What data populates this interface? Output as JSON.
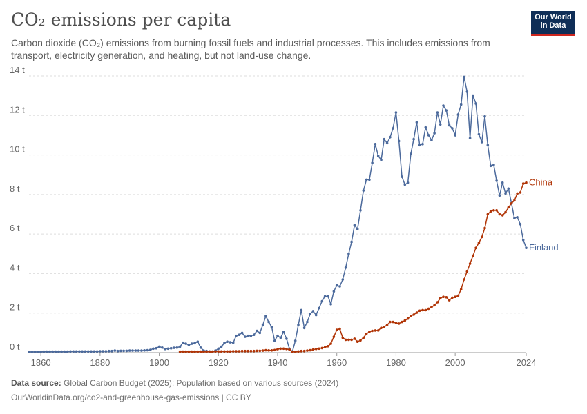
{
  "header": {
    "title": "CO₂ emissions per capita",
    "subtitle": "Carbon dioxide (CO₂) emissions from burning fossil fuels and industrial processes. This includes emissions from transport, electricity generation, and heating, but not land-use change.",
    "logo_line1": "Our World",
    "logo_line2": "in Data"
  },
  "footer": {
    "source_label": "Data source:",
    "source_text": "Global Carbon Budget (2025); Population based on various sources (2024)",
    "url_text": "OurWorldinData.org/co2-and-greenhouse-gas-emissions | CC BY"
  },
  "colors": {
    "finland": "#4c6a9c",
    "china": "#b13507",
    "grid": "#dddddd",
    "axis": "#999999"
  },
  "chart_data": {
    "type": "line",
    "title": "CO₂ emissions per capita",
    "xlim": [
      1856,
      2024
    ],
    "ylim": [
      0,
      14
    ],
    "x_ticks": [
      1860,
      1880,
      1900,
      1920,
      1940,
      1960,
      1980,
      2000,
      2024
    ],
    "y_ticks": [
      0,
      2,
      4,
      6,
      8,
      10,
      12,
      14
    ],
    "y_tick_labels": [
      "0 t",
      "2 t",
      "4 t",
      "6 t",
      "8 t",
      "10 t",
      "12 t",
      "14 t"
    ],
    "grid": "horizontal dashed",
    "legend": "inline labels at line ends",
    "series": [
      {
        "name": "Finland",
        "color": "#4c6a9c",
        "points": [
          [
            1856,
            0.04
          ],
          [
            1857,
            0.04
          ],
          [
            1858,
            0.04
          ],
          [
            1859,
            0.04
          ],
          [
            1860,
            0.04
          ],
          [
            1861,
            0.05
          ],
          [
            1862,
            0.05
          ],
          [
            1863,
            0.05
          ],
          [
            1864,
            0.05
          ],
          [
            1865,
            0.05
          ],
          [
            1866,
            0.05
          ],
          [
            1867,
            0.05
          ],
          [
            1868,
            0.05
          ],
          [
            1869,
            0.05
          ],
          [
            1870,
            0.06
          ],
          [
            1871,
            0.06
          ],
          [
            1872,
            0.06
          ],
          [
            1873,
            0.06
          ],
          [
            1874,
            0.06
          ],
          [
            1875,
            0.06
          ],
          [
            1876,
            0.06
          ],
          [
            1877,
            0.06
          ],
          [
            1878,
            0.06
          ],
          [
            1879,
            0.06
          ],
          [
            1880,
            0.07
          ],
          [
            1881,
            0.07
          ],
          [
            1882,
            0.07
          ],
          [
            1883,
            0.08
          ],
          [
            1884,
            0.08
          ],
          [
            1885,
            0.1
          ],
          [
            1886,
            0.08
          ],
          [
            1887,
            0.09
          ],
          [
            1888,
            0.09
          ],
          [
            1889,
            0.09
          ],
          [
            1890,
            0.1
          ],
          [
            1891,
            0.1
          ],
          [
            1892,
            0.1
          ],
          [
            1893,
            0.1
          ],
          [
            1894,
            0.1
          ],
          [
            1895,
            0.11
          ],
          [
            1896,
            0.12
          ],
          [
            1897,
            0.14
          ],
          [
            1898,
            0.2
          ],
          [
            1899,
            0.22
          ],
          [
            1900,
            0.3
          ],
          [
            1901,
            0.25
          ],
          [
            1902,
            0.18
          ],
          [
            1903,
            0.2
          ],
          [
            1904,
            0.22
          ],
          [
            1905,
            0.24
          ],
          [
            1906,
            0.25
          ],
          [
            1907,
            0.3
          ],
          [
            1908,
            0.5
          ],
          [
            1909,
            0.45
          ],
          [
            1910,
            0.38
          ],
          [
            1911,
            0.45
          ],
          [
            1912,
            0.48
          ],
          [
            1913,
            0.55
          ],
          [
            1914,
            0.25
          ],
          [
            1915,
            0.1
          ],
          [
            1916,
            0.08
          ],
          [
            1917,
            0.06
          ],
          [
            1918,
            0.05
          ],
          [
            1919,
            0.1
          ],
          [
            1920,
            0.2
          ],
          [
            1921,
            0.3
          ],
          [
            1922,
            0.48
          ],
          [
            1923,
            0.55
          ],
          [
            1924,
            0.52
          ],
          [
            1925,
            0.5
          ],
          [
            1926,
            0.85
          ],
          [
            1927,
            0.9
          ],
          [
            1928,
            1.0
          ],
          [
            1929,
            0.8
          ],
          [
            1930,
            0.85
          ],
          [
            1931,
            0.85
          ],
          [
            1932,
            0.9
          ],
          [
            1933,
            1.1
          ],
          [
            1934,
            1.0
          ],
          [
            1935,
            1.4
          ],
          [
            1936,
            1.85
          ],
          [
            1937,
            1.55
          ],
          [
            1938,
            1.3
          ],
          [
            1939,
            0.6
          ],
          [
            1940,
            0.85
          ],
          [
            1941,
            0.75
          ],
          [
            1942,
            1.05
          ],
          [
            1943,
            0.7
          ],
          [
            1944,
            0.2
          ],
          [
            1945,
            0.05
          ],
          [
            1946,
            0.6
          ],
          [
            1947,
            1.4
          ],
          [
            1948,
            2.15
          ],
          [
            1949,
            1.25
          ],
          [
            1950,
            1.55
          ],
          [
            1951,
            1.95
          ],
          [
            1952,
            2.1
          ],
          [
            1953,
            1.9
          ],
          [
            1954,
            2.25
          ],
          [
            1955,
            2.6
          ],
          [
            1956,
            2.85
          ],
          [
            1957,
            2.85
          ],
          [
            1958,
            2.45
          ],
          [
            1959,
            3.1
          ],
          [
            1960,
            3.4
          ],
          [
            1961,
            3.35
          ],
          [
            1962,
            3.7
          ],
          [
            1963,
            4.3
          ],
          [
            1964,
            5.0
          ],
          [
            1965,
            5.6
          ],
          [
            1966,
            6.45
          ],
          [
            1967,
            6.25
          ],
          [
            1968,
            7.2
          ],
          [
            1969,
            8.2
          ],
          [
            1970,
            8.75
          ],
          [
            1971,
            8.75
          ],
          [
            1972,
            9.6
          ],
          [
            1973,
            10.55
          ],
          [
            1974,
            9.95
          ],
          [
            1975,
            9.75
          ],
          [
            1976,
            10.8
          ],
          [
            1977,
            10.6
          ],
          [
            1978,
            10.9
          ],
          [
            1979,
            11.35
          ],
          [
            1980,
            12.15
          ],
          [
            1981,
            10.7
          ],
          [
            1982,
            8.9
          ],
          [
            1983,
            8.5
          ],
          [
            1984,
            8.6
          ],
          [
            1985,
            10.05
          ],
          [
            1986,
            10.8
          ],
          [
            1987,
            11.65
          ],
          [
            1988,
            10.5
          ],
          [
            1989,
            10.55
          ],
          [
            1990,
            11.4
          ],
          [
            1991,
            11.0
          ],
          [
            1992,
            10.75
          ],
          [
            1993,
            11.1
          ],
          [
            1994,
            12.15
          ],
          [
            1995,
            11.55
          ],
          [
            1996,
            12.5
          ],
          [
            1997,
            12.25
          ],
          [
            1998,
            11.5
          ],
          [
            1999,
            11.35
          ],
          [
            2000,
            11.0
          ],
          [
            2001,
            12.05
          ],
          [
            2002,
            12.55
          ],
          [
            2003,
            13.95
          ],
          [
            2004,
            13.2
          ],
          [
            2005,
            10.85
          ],
          [
            2006,
            13.0
          ],
          [
            2007,
            12.6
          ],
          [
            2008,
            11.05
          ],
          [
            2009,
            10.65
          ],
          [
            2010,
            11.95
          ],
          [
            2011,
            10.5
          ],
          [
            2012,
            9.45
          ],
          [
            2013,
            9.5
          ],
          [
            2014,
            8.7
          ],
          [
            2015,
            7.95
          ],
          [
            2016,
            8.6
          ],
          [
            2017,
            8.05
          ],
          [
            2018,
            8.3
          ],
          [
            2019,
            7.55
          ],
          [
            2020,
            6.8
          ],
          [
            2021,
            6.85
          ],
          [
            2022,
            6.5
          ],
          [
            2023,
            5.7
          ],
          [
            2024,
            5.3
          ]
        ]
      },
      {
        "name": "China",
        "color": "#b13507",
        "points": [
          [
            1907,
            0.05
          ],
          [
            1908,
            0.05
          ],
          [
            1909,
            0.05
          ],
          [
            1910,
            0.05
          ],
          [
            1911,
            0.05
          ],
          [
            1912,
            0.05
          ],
          [
            1913,
            0.05
          ],
          [
            1914,
            0.05
          ],
          [
            1915,
            0.05
          ],
          [
            1916,
            0.05
          ],
          [
            1917,
            0.05
          ],
          [
            1918,
            0.05
          ],
          [
            1919,
            0.06
          ],
          [
            1920,
            0.06
          ],
          [
            1921,
            0.06
          ],
          [
            1922,
            0.06
          ],
          [
            1923,
            0.06
          ],
          [
            1924,
            0.06
          ],
          [
            1925,
            0.07
          ],
          [
            1926,
            0.07
          ],
          [
            1927,
            0.07
          ],
          [
            1928,
            0.08
          ],
          [
            1929,
            0.08
          ],
          [
            1930,
            0.08
          ],
          [
            1931,
            0.08
          ],
          [
            1932,
            0.08
          ],
          [
            1933,
            0.09
          ],
          [
            1934,
            0.09
          ],
          [
            1935,
            0.1
          ],
          [
            1936,
            0.12
          ],
          [
            1937,
            0.11
          ],
          [
            1938,
            0.11
          ],
          [
            1939,
            0.13
          ],
          [
            1940,
            0.17
          ],
          [
            1941,
            0.2
          ],
          [
            1942,
            0.2
          ],
          [
            1943,
            0.18
          ],
          [
            1944,
            0.15
          ],
          [
            1945,
            0.05
          ],
          [
            1946,
            0.04
          ],
          [
            1947,
            0.06
          ],
          [
            1948,
            0.08
          ],
          [
            1949,
            0.08
          ],
          [
            1950,
            0.1
          ],
          [
            1951,
            0.12
          ],
          [
            1952,
            0.15
          ],
          [
            1953,
            0.18
          ],
          [
            1954,
            0.2
          ],
          [
            1955,
            0.23
          ],
          [
            1956,
            0.27
          ],
          [
            1957,
            0.32
          ],
          [
            1958,
            0.45
          ],
          [
            1959,
            0.8
          ],
          [
            1960,
            1.15
          ],
          [
            1961,
            1.2
          ],
          [
            1962,
            0.75
          ],
          [
            1963,
            0.65
          ],
          [
            1964,
            0.65
          ],
          [
            1965,
            0.65
          ],
          [
            1966,
            0.7
          ],
          [
            1967,
            0.55
          ],
          [
            1968,
            0.62
          ],
          [
            1969,
            0.75
          ],
          [
            1970,
            0.95
          ],
          [
            1971,
            1.05
          ],
          [
            1972,
            1.1
          ],
          [
            1973,
            1.12
          ],
          [
            1974,
            1.12
          ],
          [
            1975,
            1.25
          ],
          [
            1976,
            1.3
          ],
          [
            1977,
            1.4
          ],
          [
            1978,
            1.55
          ],
          [
            1979,
            1.55
          ],
          [
            1980,
            1.5
          ],
          [
            1981,
            1.47
          ],
          [
            1982,
            1.55
          ],
          [
            1983,
            1.62
          ],
          [
            1984,
            1.72
          ],
          [
            1985,
            1.85
          ],
          [
            1986,
            1.92
          ],
          [
            1987,
            2.02
          ],
          [
            1988,
            2.12
          ],
          [
            1989,
            2.15
          ],
          [
            1990,
            2.15
          ],
          [
            1991,
            2.22
          ],
          [
            1992,
            2.3
          ],
          [
            1993,
            2.4
          ],
          [
            1994,
            2.55
          ],
          [
            1995,
            2.75
          ],
          [
            1996,
            2.82
          ],
          [
            1997,
            2.8
          ],
          [
            1998,
            2.65
          ],
          [
            1999,
            2.78
          ],
          [
            2000,
            2.82
          ],
          [
            2001,
            2.88
          ],
          [
            2002,
            3.2
          ],
          [
            2003,
            3.7
          ],
          [
            2004,
            4.1
          ],
          [
            2005,
            4.5
          ],
          [
            2006,
            4.9
          ],
          [
            2007,
            5.3
          ],
          [
            2008,
            5.55
          ],
          [
            2009,
            5.85
          ],
          [
            2010,
            6.3
          ],
          [
            2011,
            7.0
          ],
          [
            2012,
            7.15
          ],
          [
            2013,
            7.2
          ],
          [
            2014,
            7.2
          ],
          [
            2015,
            7.0
          ],
          [
            2016,
            6.95
          ],
          [
            2017,
            7.1
          ],
          [
            2018,
            7.35
          ],
          [
            2019,
            7.55
          ],
          [
            2020,
            7.7
          ],
          [
            2021,
            8.05
          ],
          [
            2022,
            8.1
          ],
          [
            2023,
            8.55
          ],
          [
            2024,
            8.6
          ]
        ]
      }
    ]
  }
}
